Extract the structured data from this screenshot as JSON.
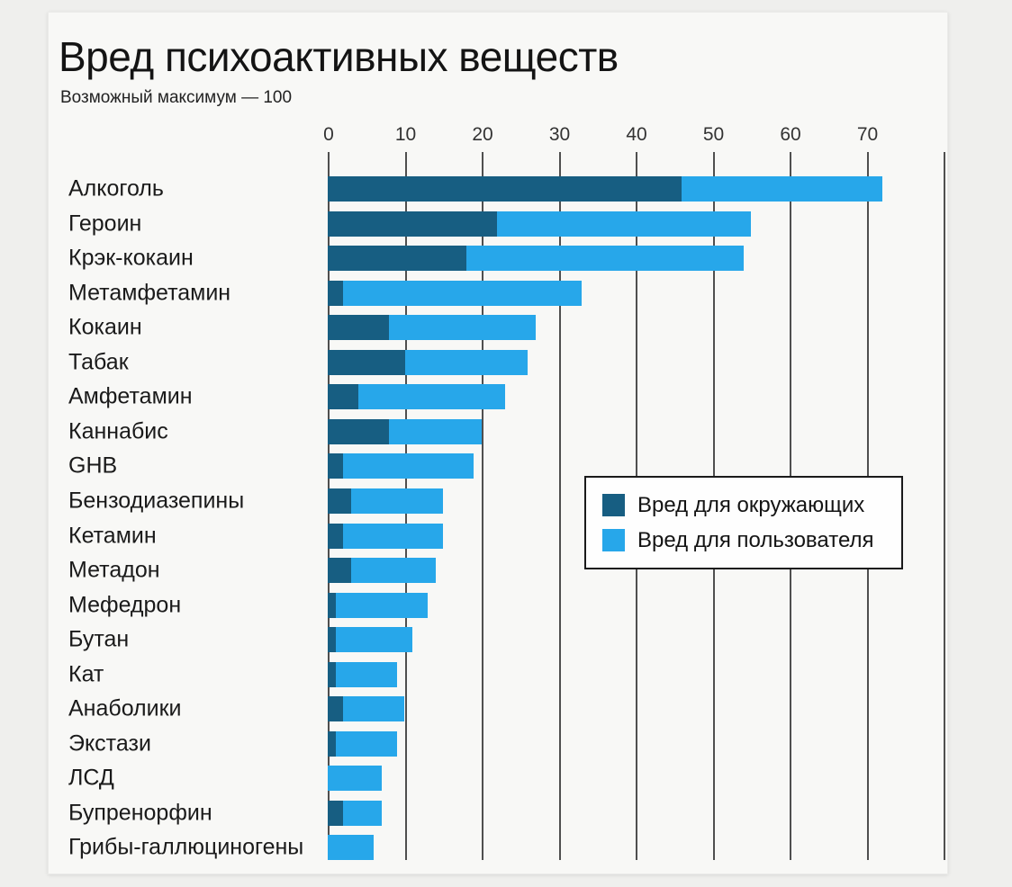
{
  "chart_data": {
    "type": "bar",
    "orientation": "horizontal",
    "stacked": true,
    "title": "Вред психоактивных веществ",
    "subtitle": "Возможный максимум — 100",
    "xlabel": "",
    "ylabel": "",
    "xlim": [
      0,
      80
    ],
    "x_ticks": [
      0,
      10,
      20,
      30,
      40,
      50,
      60,
      70
    ],
    "grid": true,
    "grid_color": "#4f4f4f",
    "legend_position": "center-right",
    "categories": [
      "Алкоголь",
      "Героин",
      "Крэк-кокаин",
      "Метамфетамин",
      "Кокаин",
      "Табак",
      "Амфетамин",
      "Каннабис",
      "GHB",
      "Бензодиазепины",
      "Кетамин",
      "Метадон",
      "Мефедрон",
      "Бутан",
      "Кат",
      "Анаболики",
      "Экстази",
      "ЛСД",
      "Бупренорфин",
      "Грибы-галлюциногены"
    ],
    "series": [
      {
        "name": "Вред для окружающих",
        "color": "#175e82",
        "values": [
          46,
          22,
          18,
          2,
          8,
          10,
          4,
          8,
          2,
          3,
          2,
          3,
          1,
          1,
          1,
          2,
          1,
          0,
          2,
          0
        ]
      },
      {
        "name": "Вред для пользователя",
        "color": "#27a7ea",
        "values": [
          26,
          33,
          36,
          31,
          19,
          16,
          19,
          12,
          17,
          12,
          13,
          11,
          12,
          10,
          8,
          8,
          8,
          7,
          5,
          6
        ]
      }
    ],
    "totals": [
      72,
      55,
      54,
      33,
      27,
      26,
      23,
      20,
      19,
      15,
      15,
      14,
      13,
      11,
      9,
      10,
      9,
      7,
      7,
      6
    ]
  },
  "colors": {
    "harm_to_others": "#175e82",
    "harm_to_user": "#27a7ea",
    "card_background": "#f8f8f6",
    "page_background": "#efefed"
  }
}
